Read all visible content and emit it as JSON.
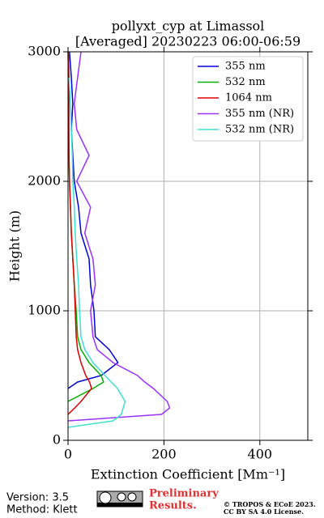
{
  "chart_data": {
    "type": "line",
    "title": "pollyxt_cyp at Limassol",
    "subtitle": "[Averaged] 20230223 06:00-06:59",
    "x_label": "Extinction Coefficient [Mm⁻¹]",
    "y_label": "Height (m)",
    "heights": [
      100,
      150,
      200,
      250,
      300,
      400,
      450,
      500,
      600,
      700,
      800,
      1000,
      1200,
      1400,
      1600,
      1800,
      2000,
      2200,
      2400,
      2600,
      2800,
      3000
    ],
    "series": [
      {
        "name": "355 nm",
        "color": "#0000dd",
        "values": [
          null,
          null,
          null,
          null,
          null,
          0,
          20,
          69,
          104,
          86,
          57,
          54,
          47,
          44,
          27,
          22,
          13,
          10,
          7,
          10,
          7,
          3
        ]
      },
      {
        "name": "532 nm",
        "color": "#00b000",
        "values": [
          null,
          null,
          null,
          null,
          0,
          52,
          74,
          69,
          44,
          27,
          20,
          17,
          13,
          10,
          7,
          5,
          3,
          2,
          2,
          2,
          2,
          1
        ]
      },
      {
        "name": "1064 nm",
        "color": "#dd0000",
        "values": [
          null,
          null,
          0,
          14,
          27,
          49,
          45,
          37,
          27,
          20,
          17,
          15,
          13,
          10,
          7,
          5,
          3,
          2,
          1,
          1,
          1,
          0
        ]
      },
      {
        "name": "355 nm (NR)",
        "color": "#9b30ff",
        "values": [
          null,
          0,
          195,
          212,
          207,
          178,
          160,
          145,
          94,
          61,
          52,
          47,
          57,
          52,
          35,
          47,
          18,
          44,
          18,
          13,
          20,
          27
        ]
      },
      {
        "name": "532 nm (NR)",
        "color": "#40e0d0",
        "values": [
          0,
          94,
          111,
          115,
          119,
          103,
          90,
          77,
          52,
          35,
          27,
          24,
          22,
          18,
          15,
          13,
          10,
          9,
          7,
          5,
          2,
          null
        ]
      }
    ],
    "xlim": [
      0,
      500
    ],
    "xticks": [
      0,
      200,
      400
    ],
    "ylim": [
      0,
      3000
    ],
    "yticks": [
      0,
      1000,
      2000,
      3000
    ],
    "grid": true,
    "legend": "upper right",
    "footer": {
      "version": "Version: 3.5",
      "method": "Method: Klett",
      "preliminary": "Preliminary",
      "results": "Results.",
      "copyright": "© TROPOS & ECoE 2023.",
      "license": "CC BY SA 4.0 License."
    }
  }
}
